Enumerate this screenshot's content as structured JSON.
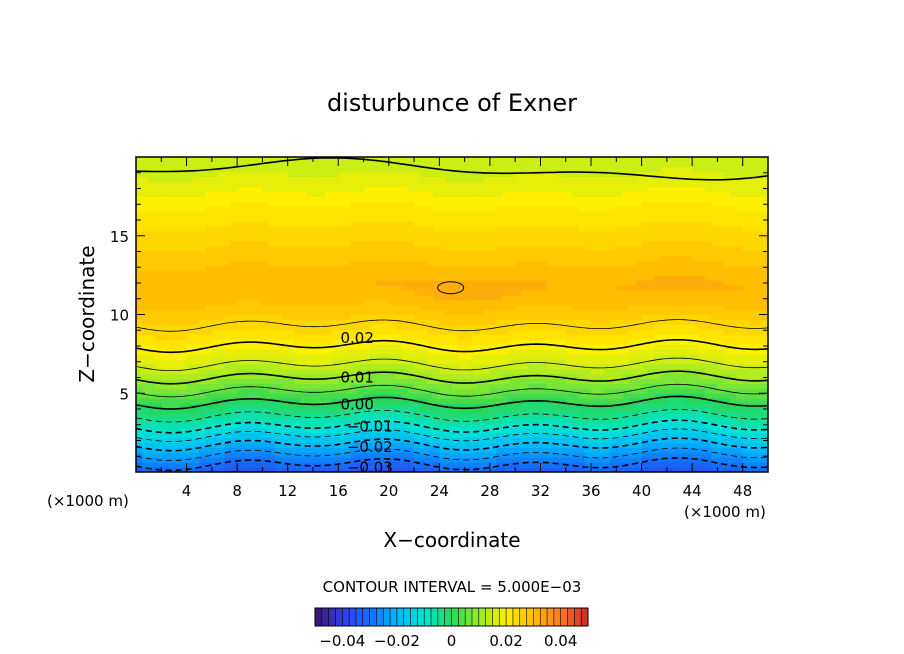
{
  "chart_data": {
    "type": "heatmap",
    "title": "disturbunce of Exner",
    "xlabel": "X−coordinate",
    "ylabel": "Z−coordinate",
    "x_unit": "(×1000 m)",
    "y_unit": "(×1000 m)",
    "xlim": [
      0,
      50
    ],
    "ylim": [
      0,
      20
    ],
    "x_ticks": [
      "4",
      "8",
      "12",
      "16",
      "20",
      "24",
      "28",
      "32",
      "36",
      "40",
      "44",
      "48"
    ],
    "y_ticks": [
      "5",
      "10",
      "15"
    ],
    "contour_interval_text": "CONTOUR INTERVAL = 5.000E−03",
    "contour_labels": [
      {
        "text": "0.02",
        "x": 17.5,
        "z": 8.5
      },
      {
        "text": "0.01",
        "x": 17.5,
        "z": 6.0
      },
      {
        "text": "0.00",
        "x": 17.5,
        "z": 4.3
      },
      {
        "text": "−0.01",
        "x": 18.5,
        "z": 2.9
      },
      {
        "text": "−0.02",
        "x": 18.5,
        "z": 1.6
      },
      {
        "text": "−0.03",
        "x": 18.5,
        "z": 0.3
      }
    ],
    "profile": {
      "z": [
        0,
        1,
        2,
        3,
        4,
        4.4,
        5,
        6,
        7,
        8,
        9,
        10,
        11,
        11.8,
        13,
        14,
        15,
        16,
        17,
        18,
        19,
        20
      ],
      "value": [
        -0.034,
        -0.026,
        -0.018,
        -0.009,
        -0.002,
        0.0,
        0.004,
        0.01,
        0.016,
        0.02,
        0.024,
        0.027,
        0.03,
        0.031,
        0.029,
        0.027,
        0.025,
        0.023,
        0.021,
        0.018,
        0.016,
        0.014
      ]
    },
    "colorbar": {
      "range": [
        -0.05,
        0.05
      ],
      "tick_labels": [
        "−0.04",
        "−0.02",
        "0",
        "0.02",
        "0.04"
      ],
      "tick_values": [
        -0.04,
        -0.02,
        0,
        0.02,
        0.04
      ]
    }
  }
}
